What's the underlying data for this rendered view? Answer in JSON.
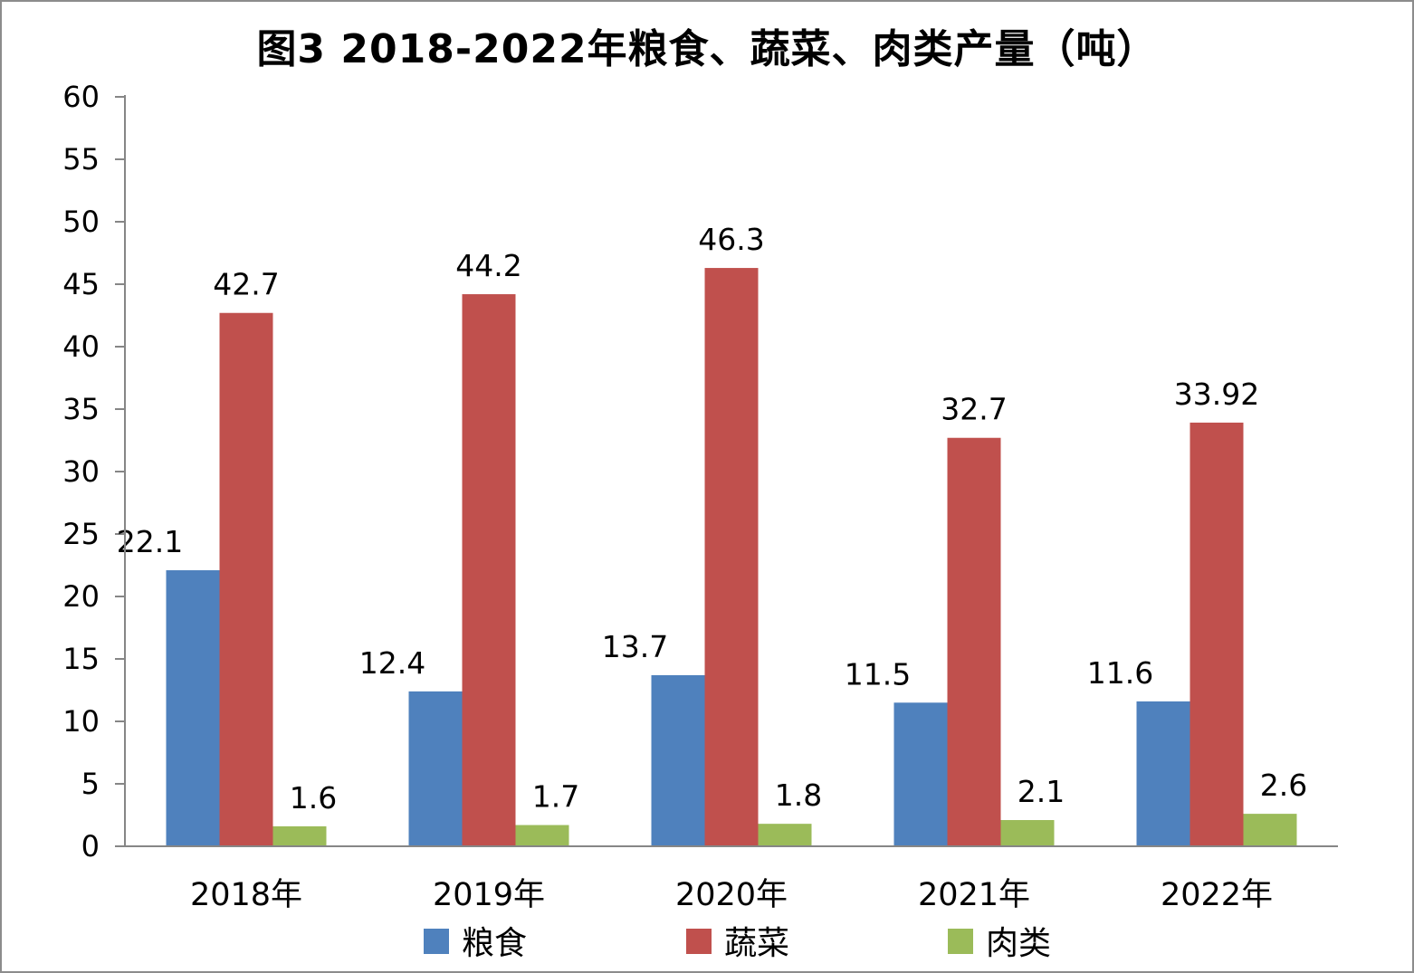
{
  "chart_data": {
    "type": "bar",
    "title": "图3   2018-2022年粮食、蔬菜、肉类产量（吨）",
    "categories": [
      "2018年",
      "2019年",
      "2020年",
      "2021年",
      "2022年"
    ],
    "series": [
      {
        "name": "粮食",
        "color": "#4f81bd",
        "values": [
          22.1,
          12.4,
          13.7,
          11.5,
          11.6
        ],
        "labels": [
          "22.1",
          "12.4",
          "13.7",
          "11.5",
          "11.6"
        ]
      },
      {
        "name": "蔬菜",
        "color": "#c0504d",
        "values": [
          42.7,
          44.2,
          46.3,
          32.7,
          33.92
        ],
        "labels": [
          "42.7",
          "44.2",
          "46.3",
          "32.7",
          "33.92"
        ]
      },
      {
        "name": "肉类",
        "color": "#9bbb59",
        "values": [
          1.6,
          1.7,
          1.8,
          2.1,
          2.6
        ],
        "labels": [
          "1.6",
          "1.7",
          "1.8",
          "2.1",
          "2.6"
        ]
      }
    ],
    "ylim": [
      0,
      60
    ],
    "yticks": [
      "0",
      "5",
      "10",
      "15",
      "20",
      "25",
      "30",
      "35",
      "40",
      "45",
      "50",
      "55",
      "60"
    ],
    "grid": false,
    "legend": "bottom"
  }
}
